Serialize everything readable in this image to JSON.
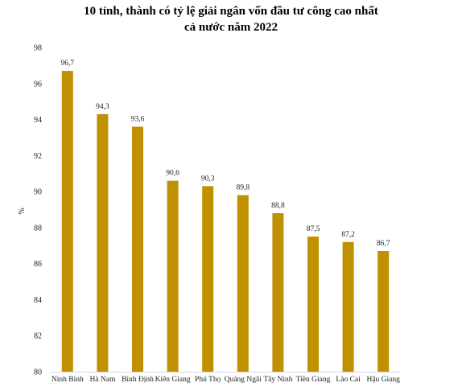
{
  "chart_data": {
    "type": "bar",
    "title_lines": [
      "10 tỉnh, thành có tỷ lệ giải ngân vốn đầu tư công cao nhất",
      "cả nước năm 2022"
    ],
    "ylabel": "%",
    "xlabel": "",
    "ylim": [
      80,
      98
    ],
    "yticks": [
      80,
      82,
      84,
      86,
      88,
      90,
      92,
      94,
      96,
      98
    ],
    "categories": [
      "Ninh Bình",
      "Hà Nam",
      "Bình Định",
      "Kiên Giang",
      "Phú Thọ",
      "Quảng Ngãi",
      "Tây Ninh",
      "Tiền Giang",
      "Lào Cai",
      "Hậu Giang"
    ],
    "values": [
      96.7,
      94.3,
      93.6,
      90.6,
      90.3,
      89.8,
      88.8,
      87.5,
      87.2,
      86.7
    ],
    "value_labels": [
      "96,7",
      "94,3",
      "93,6",
      "90,6",
      "90,3",
      "89,8",
      "88,8",
      "87,5",
      "87,2",
      "86,7"
    ],
    "bar_color": "#BF9000",
    "grid": false,
    "legend": "none"
  }
}
